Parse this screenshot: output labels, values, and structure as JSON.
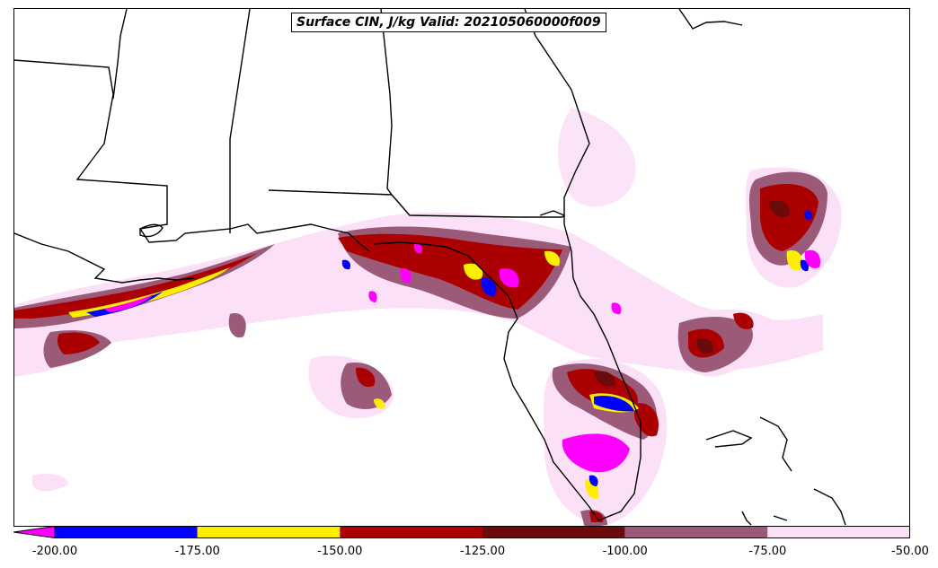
{
  "title": "Surface CIN, J/kg Valid: 202105060000f009",
  "colorbar": {
    "ticks": [
      "-200.00",
      "-175.00",
      "-150.00",
      "-125.00",
      "-100.00",
      "-75.00",
      "-50.00"
    ],
    "bins": [
      {
        "range": [
          -225,
          -200
        ],
        "color": "#ff00ff"
      },
      {
        "range": [
          -200,
          -175
        ],
        "color": "#0000ff"
      },
      {
        "range": [
          -175,
          -150
        ],
        "color": "#ffee00"
      },
      {
        "range": [
          -150,
          -125
        ],
        "color": "#aa0000"
      },
      {
        "range": [
          -125,
          -100
        ],
        "color": "#6b0a0a"
      },
      {
        "range": [
          -100,
          -75
        ],
        "color": "#9a5a78"
      },
      {
        "range": [
          -75,
          -50
        ],
        "color": "#fbe0f7"
      }
    ]
  }
}
